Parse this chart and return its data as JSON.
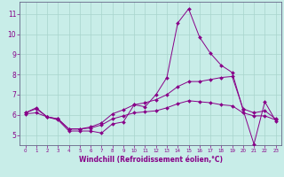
{
  "xlabel": "Windchill (Refroidissement éolien,°C)",
  "bg_color": "#c8ede8",
  "grid_color": "#a8d4cc",
  "line_color": "#880088",
  "spine_color": "#666688",
  "tick_color": "#880088",
  "xlim": [
    -0.5,
    23.5
  ],
  "ylim": [
    4.5,
    11.6
  ],
  "yticks": [
    5,
    6,
    7,
    8,
    9,
    10,
    11
  ],
  "xticks": [
    0,
    1,
    2,
    3,
    4,
    5,
    6,
    7,
    8,
    9,
    10,
    11,
    12,
    13,
    14,
    15,
    16,
    17,
    18,
    19,
    20,
    21,
    22,
    23
  ],
  "line1_x": [
    0,
    1,
    2,
    3,
    4,
    5,
    6,
    7,
    8,
    9,
    10,
    11,
    12,
    13,
    14,
    15,
    16,
    17,
    18,
    19,
    20,
    21,
    22,
    23
  ],
  "line1_y": [
    6.1,
    6.35,
    5.9,
    5.75,
    5.2,
    5.2,
    5.2,
    5.1,
    5.55,
    5.65,
    6.5,
    6.4,
    7.0,
    7.85,
    10.55,
    11.25,
    9.85,
    9.05,
    8.45,
    8.1,
    6.25,
    4.55,
    6.65,
    5.7
  ],
  "line2_x": [
    0,
    1,
    2,
    3,
    4,
    5,
    6,
    7,
    8,
    9,
    10,
    11,
    12,
    13,
    14,
    15,
    16,
    17,
    18,
    19,
    20,
    21,
    22,
    23
  ],
  "line2_y": [
    6.1,
    6.3,
    5.9,
    5.8,
    5.3,
    5.3,
    5.4,
    5.6,
    6.05,
    6.25,
    6.5,
    6.6,
    6.75,
    7.0,
    7.4,
    7.65,
    7.65,
    7.75,
    7.85,
    7.9,
    6.3,
    6.1,
    6.2,
    5.8
  ],
  "line3_x": [
    0,
    1,
    2,
    3,
    4,
    5,
    6,
    7,
    8,
    9,
    10,
    11,
    12,
    13,
    14,
    15,
    16,
    17,
    18,
    19,
    20,
    21,
    22,
    23
  ],
  "line3_y": [
    6.05,
    6.1,
    5.9,
    5.8,
    5.3,
    5.3,
    5.35,
    5.5,
    5.8,
    5.95,
    6.1,
    6.15,
    6.2,
    6.35,
    6.55,
    6.7,
    6.65,
    6.6,
    6.5,
    6.45,
    6.1,
    5.95,
    5.95,
    5.75
  ]
}
